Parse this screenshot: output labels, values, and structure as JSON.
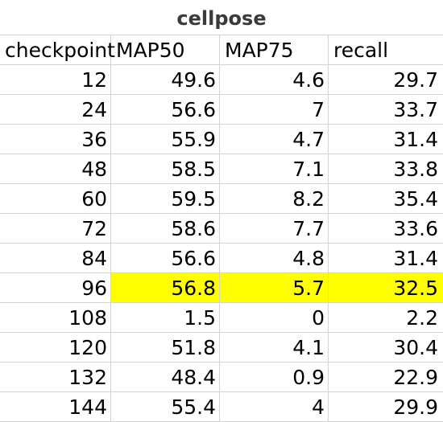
{
  "sheet": {
    "title": "cellpose",
    "highlight_color": "#ffff00",
    "headers": [
      "checkpoint",
      "MAP50",
      "MAP75",
      "recall"
    ],
    "rows": [
      [
        "12",
        "49.6",
        "4.6",
        "29.7"
      ],
      [
        "24",
        "56.6",
        "7",
        "33.7"
      ],
      [
        "36",
        "55.9",
        "4.7",
        "31.4"
      ],
      [
        "48",
        "58.5",
        "7.1",
        "33.8"
      ],
      [
        "60",
        "59.5",
        "8.2",
        "35.4"
      ],
      [
        "72",
        "58.6",
        "7.7",
        "33.6"
      ],
      [
        "84",
        "56.6",
        "4.8",
        "31.4"
      ],
      [
        "96",
        "56.8",
        "5.7",
        "32.5"
      ],
      [
        "108",
        "1.5",
        "0",
        "2.2"
      ],
      [
        "120",
        "51.8",
        "4.1",
        "30.4"
      ],
      [
        "132",
        "48.4",
        "0.9",
        "22.9"
      ],
      [
        "144",
        "55.4",
        "4",
        "29.9"
      ]
    ],
    "highlighted_row_index": 7
  }
}
